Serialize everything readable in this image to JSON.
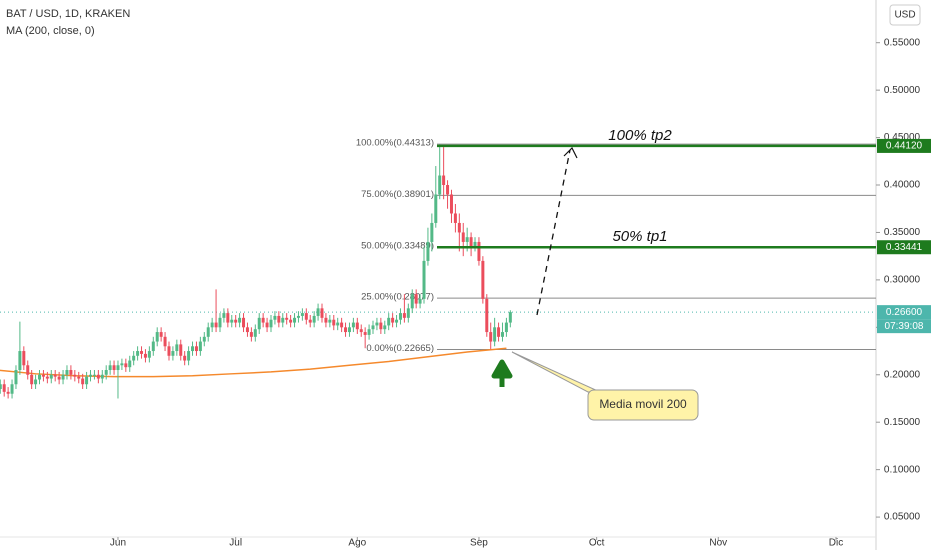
{
  "chart_data": {
    "type": "candlestick",
    "title": "BAT / USD, 1D, KRAKEN",
    "indicator_label": "MA (200, close, 0)",
    "currency": "USD",
    "up_color": "#53b987",
    "down_color": "#eb4d5c",
    "ma_color": "#f5892c",
    "ylim": [
      0.029,
      0.595
    ],
    "xlim": [
      0.93,
      224.2
    ],
    "grid": false,
    "yticks": [
      {
        "value": 0.55,
        "label": "0.55000"
      },
      {
        "value": 0.5,
        "label": "0.50000"
      },
      {
        "value": 0.45,
        "label": "0.45000"
      },
      {
        "value": 0.4,
        "label": "0.40000"
      },
      {
        "value": 0.35,
        "label": "0.35000"
      },
      {
        "value": 0.3,
        "label": "0.30000"
      },
      {
        "value": 0.25,
        "label": "0.25000"
      },
      {
        "value": 0.2,
        "label": "0.20000"
      },
      {
        "value": 0.15,
        "label": "0.15000"
      },
      {
        "value": 0.1,
        "label": "0.10000"
      },
      {
        "value": 0.05,
        "label": "0.05000"
      }
    ],
    "xticks": [
      {
        "value": 31,
        "label": "Jun"
      },
      {
        "value": 61,
        "label": "Jul"
      },
      {
        "value": 92,
        "label": "Ago"
      },
      {
        "value": 123,
        "label": "Sep"
      },
      {
        "value": 153,
        "label": "Oct"
      },
      {
        "value": 184,
        "label": "Nov"
      },
      {
        "value": 214,
        "label": "Dic"
      }
    ],
    "candles": [
      [
        0.19,
        0.195,
        0.18,
        0.185
      ],
      [
        0.185,
        0.195,
        0.18,
        0.19
      ],
      [
        0.19,
        0.195,
        0.177,
        0.182
      ],
      [
        0.182,
        0.187,
        0.175,
        0.18
      ],
      [
        0.18,
        0.195,
        0.175,
        0.19
      ],
      [
        0.19,
        0.21,
        0.185,
        0.205
      ],
      [
        0.205,
        0.256,
        0.2,
        0.225
      ],
      [
        0.225,
        0.23,
        0.205,
        0.21
      ],
      [
        0.21,
        0.215,
        0.195,
        0.2
      ],
      [
        0.2,
        0.205,
        0.185,
        0.19
      ],
      [
        0.19,
        0.2,
        0.185,
        0.195
      ],
      [
        0.195,
        0.205,
        0.19,
        0.2
      ],
      [
        0.2,
        0.205,
        0.193,
        0.198
      ],
      [
        0.198,
        0.203,
        0.191,
        0.196
      ],
      [
        0.196,
        0.205,
        0.191,
        0.2
      ],
      [
        0.2,
        0.205,
        0.193,
        0.198
      ],
      [
        0.198,
        0.203,
        0.19,
        0.195
      ],
      [
        0.195,
        0.205,
        0.19,
        0.2
      ],
      [
        0.2,
        0.21,
        0.195,
        0.205
      ],
      [
        0.205,
        0.21,
        0.195,
        0.2
      ],
      [
        0.2,
        0.205,
        0.193,
        0.198
      ],
      [
        0.198,
        0.203,
        0.191,
        0.196
      ],
      [
        0.196,
        0.201,
        0.185,
        0.19
      ],
      [
        0.19,
        0.203,
        0.185,
        0.198
      ],
      [
        0.198,
        0.205,
        0.193,
        0.2
      ],
      [
        0.2,
        0.205,
        0.195,
        0.2
      ],
      [
        0.2,
        0.205,
        0.191,
        0.196
      ],
      [
        0.196,
        0.205,
        0.191,
        0.2
      ],
      [
        0.2,
        0.21,
        0.195,
        0.205
      ],
      [
        0.205,
        0.215,
        0.2,
        0.21
      ],
      [
        0.21,
        0.215,
        0.2,
        0.205
      ],
      [
        0.205,
        0.215,
        0.175,
        0.21
      ],
      [
        0.21,
        0.217,
        0.205,
        0.212
      ],
      [
        0.212,
        0.217,
        0.203,
        0.208
      ],
      [
        0.208,
        0.22,
        0.203,
        0.215
      ],
      [
        0.215,
        0.225,
        0.21,
        0.22
      ],
      [
        0.22,
        0.23,
        0.215,
        0.225
      ],
      [
        0.225,
        0.23,
        0.217,
        0.222
      ],
      [
        0.222,
        0.227,
        0.213,
        0.218
      ],
      [
        0.218,
        0.23,
        0.213,
        0.225
      ],
      [
        0.225,
        0.24,
        0.22,
        0.235
      ],
      [
        0.235,
        0.25,
        0.23,
        0.245
      ],
      [
        0.245,
        0.25,
        0.235,
        0.24
      ],
      [
        0.24,
        0.245,
        0.225,
        0.23
      ],
      [
        0.23,
        0.235,
        0.215,
        0.22
      ],
      [
        0.22,
        0.23,
        0.215,
        0.225
      ],
      [
        0.225,
        0.237,
        0.22,
        0.232
      ],
      [
        0.232,
        0.237,
        0.215,
        0.22
      ],
      [
        0.22,
        0.225,
        0.21,
        0.215
      ],
      [
        0.215,
        0.23,
        0.21,
        0.225
      ],
      [
        0.225,
        0.235,
        0.22,
        0.23
      ],
      [
        0.23,
        0.235,
        0.22,
        0.225
      ],
      [
        0.225,
        0.24,
        0.22,
        0.235
      ],
      [
        0.235,
        0.245,
        0.23,
        0.24
      ],
      [
        0.24,
        0.255,
        0.235,
        0.25
      ],
      [
        0.25,
        0.26,
        0.245,
        0.255
      ],
      [
        0.255,
        0.29,
        0.245,
        0.25
      ],
      [
        0.25,
        0.265,
        0.245,
        0.26
      ],
      [
        0.26,
        0.27,
        0.255,
        0.265
      ],
      [
        0.265,
        0.27,
        0.25,
        0.255
      ],
      [
        0.255,
        0.263,
        0.25,
        0.258
      ],
      [
        0.258,
        0.263,
        0.25,
        0.255
      ],
      [
        0.255,
        0.265,
        0.25,
        0.26
      ],
      [
        0.26,
        0.265,
        0.245,
        0.25
      ],
      [
        0.25,
        0.255,
        0.24,
        0.245
      ],
      [
        0.245,
        0.25,
        0.235,
        0.24
      ],
      [
        0.24,
        0.253,
        0.235,
        0.248
      ],
      [
        0.248,
        0.265,
        0.243,
        0.26
      ],
      [
        0.26,
        0.265,
        0.25,
        0.255
      ],
      [
        0.255,
        0.26,
        0.245,
        0.25
      ],
      [
        0.25,
        0.263,
        0.245,
        0.258
      ],
      [
        0.258,
        0.267,
        0.253,
        0.262
      ],
      [
        0.262,
        0.267,
        0.25,
        0.255
      ],
      [
        0.255,
        0.265,
        0.25,
        0.26
      ],
      [
        0.26,
        0.265,
        0.253,
        0.258
      ],
      [
        0.258,
        0.263,
        0.25,
        0.255
      ],
      [
        0.255,
        0.265,
        0.25,
        0.26
      ],
      [
        0.26,
        0.267,
        0.255,
        0.262
      ],
      [
        0.262,
        0.27,
        0.257,
        0.265
      ],
      [
        0.265,
        0.27,
        0.253,
        0.258
      ],
      [
        0.258,
        0.263,
        0.25,
        0.255
      ],
      [
        0.255,
        0.267,
        0.25,
        0.262
      ],
      [
        0.262,
        0.275,
        0.257,
        0.27
      ],
      [
        0.27,
        0.275,
        0.255,
        0.26
      ],
      [
        0.26,
        0.265,
        0.25,
        0.255
      ],
      [
        0.255,
        0.263,
        0.25,
        0.258
      ],
      [
        0.258,
        0.263,
        0.247,
        0.252
      ],
      [
        0.252,
        0.26,
        0.247,
        0.255
      ],
      [
        0.255,
        0.26,
        0.245,
        0.25
      ],
      [
        0.25,
        0.255,
        0.24,
        0.245
      ],
      [
        0.245,
        0.255,
        0.24,
        0.25
      ],
      [
        0.25,
        0.26,
        0.245,
        0.255
      ],
      [
        0.255,
        0.26,
        0.243,
        0.248
      ],
      [
        0.248,
        0.253,
        0.24,
        0.245
      ],
      [
        0.245,
        0.25,
        0.228,
        0.242
      ],
      [
        0.242,
        0.253,
        0.237,
        0.248
      ],
      [
        0.248,
        0.257,
        0.243,
        0.252
      ],
      [
        0.252,
        0.26,
        0.247,
        0.255
      ],
      [
        0.255,
        0.26,
        0.243,
        0.248
      ],
      [
        0.248,
        0.257,
        0.243,
        0.252
      ],
      [
        0.252,
        0.265,
        0.247,
        0.26
      ],
      [
        0.26,
        0.265,
        0.25,
        0.255
      ],
      [
        0.255,
        0.263,
        0.25,
        0.258
      ],
      [
        0.258,
        0.27,
        0.253,
        0.265
      ],
      [
        0.265,
        0.285,
        0.255,
        0.26
      ],
      [
        0.26,
        0.275,
        0.255,
        0.27
      ],
      [
        0.27,
        0.29,
        0.265,
        0.285
      ],
      [
        0.285,
        0.29,
        0.27,
        0.275
      ],
      [
        0.275,
        0.285,
        0.27,
        0.28
      ],
      [
        0.28,
        0.335,
        0.275,
        0.32
      ],
      [
        0.32,
        0.355,
        0.315,
        0.34
      ],
      [
        0.34,
        0.37,
        0.33,
        0.36
      ],
      [
        0.36,
        0.42,
        0.355,
        0.39
      ],
      [
        0.39,
        0.443,
        0.385,
        0.41
      ],
      [
        0.41,
        0.44,
        0.385,
        0.4
      ],
      [
        0.4,
        0.405,
        0.375,
        0.39
      ],
      [
        0.39,
        0.395,
        0.36,
        0.37
      ],
      [
        0.37,
        0.38,
        0.35,
        0.36
      ],
      [
        0.36,
        0.37,
        0.33,
        0.35
      ],
      [
        0.35,
        0.36,
        0.325,
        0.34
      ],
      [
        0.34,
        0.355,
        0.33,
        0.345
      ],
      [
        0.345,
        0.35,
        0.325,
        0.335
      ],
      [
        0.335,
        0.345,
        0.33,
        0.34
      ],
      [
        0.34,
        0.345,
        0.315,
        0.32
      ],
      [
        0.32,
        0.325,
        0.275,
        0.28
      ],
      [
        0.28,
        0.285,
        0.24,
        0.245
      ],
      [
        0.245,
        0.255,
        0.227,
        0.235
      ],
      [
        0.235,
        0.26,
        0.23,
        0.25
      ],
      [
        0.25,
        0.255,
        0.235,
        0.24
      ],
      [
        0.24,
        0.255,
        0.235,
        0.245
      ],
      [
        0.245,
        0.26,
        0.24,
        0.255
      ],
      [
        0.255,
        0.268,
        0.25,
        0.266
      ]
    ],
    "ma_x": [
      0,
      10,
      20,
      30,
      40,
      50,
      60,
      70,
      80,
      90,
      100,
      110,
      120,
      130
    ],
    "ma_values": [
      0.205,
      0.201,
      0.199,
      0.198,
      0.198,
      0.199,
      0.201,
      0.203,
      0.206,
      0.21,
      0.214,
      0.219,
      0.224,
      0.228
    ],
    "fib_levels": [
      {
        "value": 0.44313,
        "label": "100.00%(0.44313)"
      },
      {
        "value": 0.38901,
        "label": "75.00%(0.38901)"
      },
      {
        "value": 0.33489,
        "label": "50.00%(0.33489)"
      },
      {
        "value": 0.28077,
        "label": "25.00%(0.28077)"
      },
      {
        "value": 0.22665,
        "label": "0.00%(0.22665)"
      }
    ],
    "targets": [
      {
        "value": 0.4412,
        "text": "100% tp2",
        "tag": "0.44120",
        "color": "#1e7b1e"
      },
      {
        "value": 0.33441,
        "text": "50% tp1",
        "tag": "0.33441",
        "color": "#1e7b1e"
      }
    ],
    "last_price": {
      "value": 0.266,
      "tag": "0.26600",
      "countdown": "07:39:08",
      "color": "#4db6ac"
    },
    "callout": "Media movil 200"
  }
}
